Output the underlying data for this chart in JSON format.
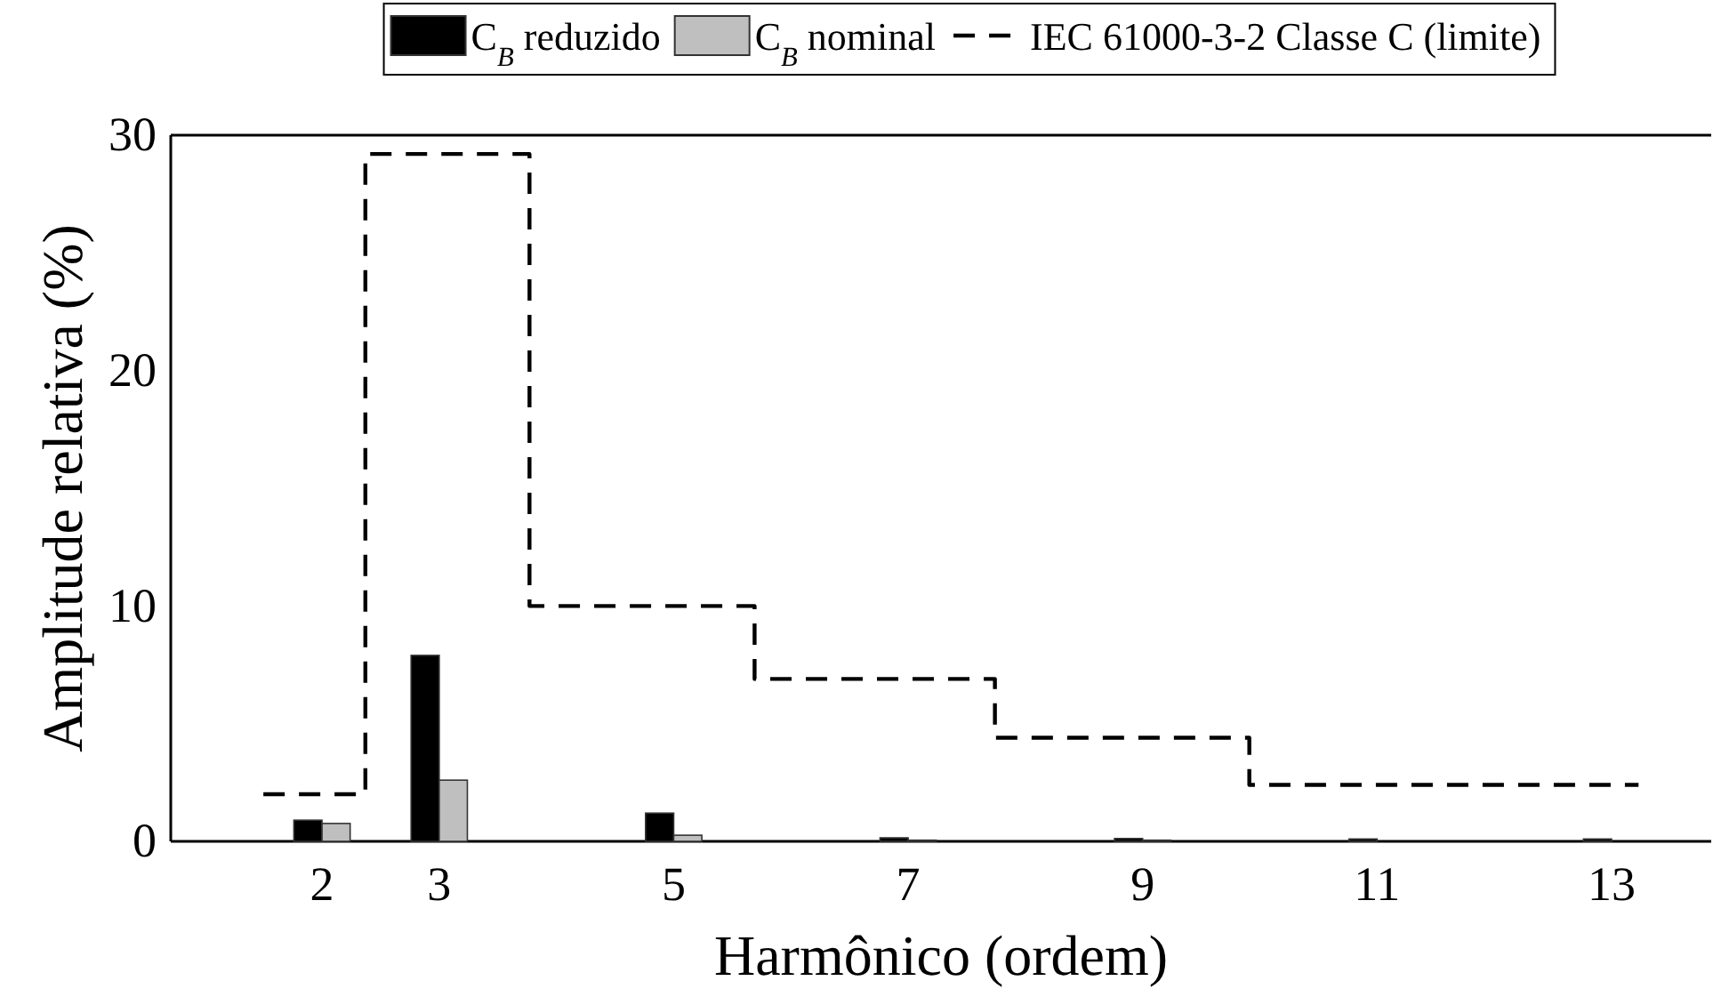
{
  "chart_data": {
    "type": "bar",
    "xlabel": "Harmônico (ordem)",
    "ylabel": "Amplitude relativa (%)",
    "x": [
      2,
      3,
      5,
      7,
      9,
      11,
      13
    ],
    "series": [
      {
        "name": "C$_{B}$ reduzido",
        "color": "#000000",
        "values": [
          0.9,
          7.9,
          1.2,
          0.15,
          0.12,
          0.1,
          0.1
        ]
      },
      {
        "name": "C$_{B}$ nominal",
        "color": "#bfbfbf",
        "values": [
          0.76,
          2.6,
          0.26,
          0.05,
          null,
          0.05,
          null
        ]
      },
      {
        "name": "IEC 61000-3-2 Classe C (limite)",
        "type": "line",
        "color": "#000000",
        "line_style": "dashed",
        "marker": "none",
        "x": [
          1.5,
          2.37,
          2.37,
          3.77,
          3.77,
          5.69,
          5.69,
          7.74,
          7.74,
          9.91,
          9.91,
          13.23
        ],
        "values": [
          2,
          2,
          29.2,
          29.2,
          10,
          10,
          6.9,
          6.9,
          4.4,
          4.4,
          2.4,
          2.4
        ]
      }
    ],
    "xlim": [
      0.71,
      13.85
    ],
    "xticks": [
      2,
      3,
      5,
      7,
      9,
      11,
      13
    ],
    "ylim": [
      0,
      30
    ],
    "yticks": [
      0,
      10,
      20,
      30
    ],
    "grid": false,
    "legend": "top"
  }
}
